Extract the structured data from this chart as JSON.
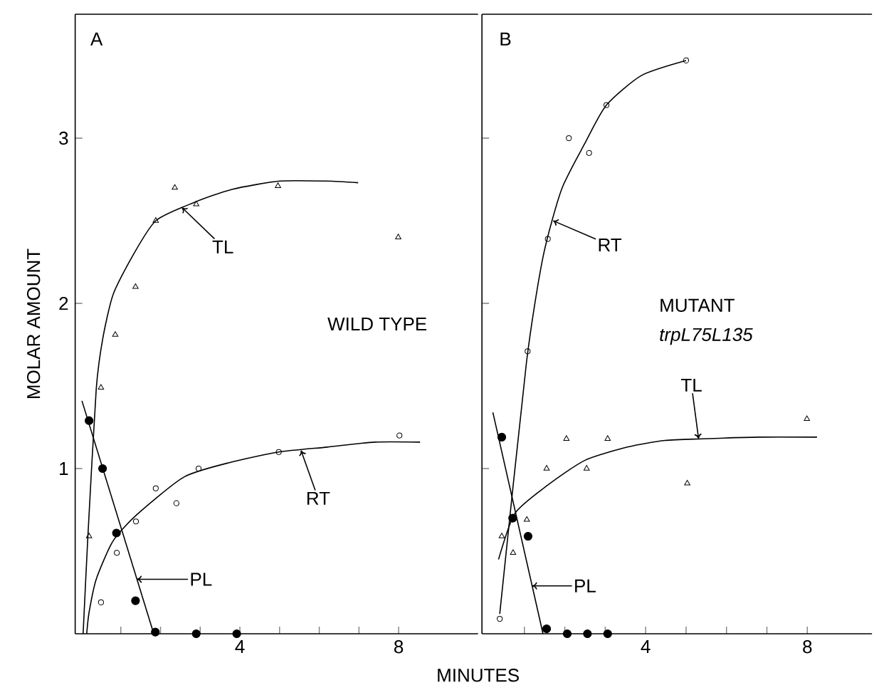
{
  "chart_data": [
    {
      "type": "scatter",
      "xlabel": "MINUTES",
      "ylabel": "MOLAR AMOUNT",
      "xlim": [
        -0.15,
        10
      ],
      "ylim": [
        0,
        3.75
      ],
      "xticks": [
        {
          "value": 1,
          "label": null
        },
        {
          "value": 2,
          "label": null
        },
        {
          "value": 3,
          "label": null
        },
        4,
        {
          "value": 5,
          "label": null
        },
        {
          "value": 6,
          "label": null
        },
        {
          "value": 7,
          "label": null
        },
        8
      ],
      "yticks": [
        1,
        2,
        3
      ],
      "series": [
        {
          "marker": "circle",
          "color": "#000000",
          "x": [
            0.2,
            0.54,
            0.89,
            1.37,
            1.87,
            2.9,
            3.92
          ],
          "values": [
            1.29,
            1.0,
            0.61,
            0.2,
            0.01,
            0,
            0
          ]
        },
        {
          "type": "line",
          "marker": "none",
          "color": "#000000",
          "x": [
            0.02,
            1.83
          ],
          "values": [
            1.41,
            0
          ]
        },
        {
          "marker": "triangle_open",
          "color": "#000000",
          "x": [
            0.2,
            0.5,
            0.86,
            1.37,
            1.88,
            2.36,
            2.9,
            4.96,
            7.99
          ],
          "values": [
            0.59,
            1.49,
            1.81,
            2.1,
            2.5,
            2.7,
            2.6,
            2.71,
            2.4
          ]
        },
        {
          "type": "line",
          "marker": "none",
          "color": "#000000",
          "x": [
            0.05,
            0.17,
            0.38,
            0.54,
            0.8,
            1.28,
            1.88,
            2.84,
            3.8,
            5.0,
            6.2,
            6.98
          ],
          "values": [
            0,
            0.59,
            1.48,
            1.78,
            2.05,
            2.28,
            2.5,
            2.61,
            2.69,
            2.74,
            2.74,
            2.73
          ]
        },
        {
          "marker": "circle_open",
          "color": "#000000",
          "x": [
            0.5,
            0.9,
            1.38,
            1.88,
            2.4,
            2.96,
            4.98,
            8.02
          ],
          "values": [
            0.19,
            0.49,
            0.68,
            0.88,
            0.79,
            1.0,
            1.1,
            1.2
          ]
        },
        {
          "type": "line",
          "marker": "none",
          "color": "#000000",
          "x": [
            0.14,
            0.2,
            0.38,
            0.8,
            1.4,
            2.6,
            3.8,
            4.98,
            6.2,
            7.4,
            8.54
          ],
          "values": [
            0,
            0.13,
            0.33,
            0.56,
            0.72,
            0.95,
            1.04,
            1.1,
            1.13,
            1.16,
            1.16
          ]
        }
      ],
      "annotations": [
        "A",
        {
          "text": "TL",
          "x": 2.54,
          "y": 2.58
        },
        {
          "text": "RT",
          "x": 5.54,
          "y": 1.11
        },
        {
          "text": "PL",
          "x": 1.4,
          "y": 0.33
        },
        "WILD TYPE"
      ]
    },
    {
      "type": "scatter",
      "tick_labels": "x",
      "xlim": [
        -0.05,
        9.6
      ],
      "ylim": [
        0,
        3.75
      ],
      "xticks": [
        {
          "value": 1,
          "label": null
        },
        {
          "value": 2,
          "label": null
        },
        {
          "value": 3,
          "label": null
        },
        4,
        {
          "value": 5,
          "label": null
        },
        {
          "value": 6,
          "label": null
        },
        {
          "value": 7,
          "label": null
        },
        8
      ],
      "yticks": [
        1,
        2,
        3
      ],
      "series": [
        {
          "marker": "circle",
          "color": "#000000",
          "x": [
            0.44,
            0.71,
            1.09,
            1.55,
            2.06,
            2.56,
            3.06
          ],
          "values": [
            1.19,
            0.7,
            0.59,
            0.03,
            0,
            0,
            0
          ]
        },
        {
          "type": "line",
          "marker": "none",
          "color": "#000000",
          "x": [
            0.22,
            1.46
          ],
          "values": [
            1.34,
            0.0
          ]
        },
        {
          "marker": "circle_open",
          "color": "#000000",
          "x": [
            0.39,
            1.08,
            1.58,
            2.1,
            2.6,
            3.03,
            5.0
          ],
          "values": [
            0.09,
            1.71,
            2.39,
            3.0,
            2.91,
            3.2,
            3.47
          ]
        },
        {
          "type": "line",
          "marker": "none",
          "color": "#000000",
          "x": [
            0.39,
            1.05,
            1.46,
            1.92,
            2.5,
            3.03,
            3.9,
            5.0
          ],
          "values": [
            0.12,
            1.64,
            2.28,
            2.69,
            2.97,
            3.2,
            3.38,
            3.47
          ]
        },
        {
          "marker": "triangle_open",
          "color": "#000000",
          "x": [
            0.44,
            0.72,
            1.06,
            1.55,
            2.04,
            2.54,
            3.06,
            5.03,
            7.99
          ],
          "values": [
            0.59,
            0.49,
            0.69,
            1.0,
            1.18,
            1.0,
            1.18,
            0.91,
            1.3
          ]
        },
        {
          "type": "line",
          "marker": "none",
          "color": "#000000",
          "x": [
            0.36,
            0.77,
            1.58,
            2.5,
            3.55,
            4.48,
            5.4,
            6.8,
            8.24
          ],
          "values": [
            0.45,
            0.73,
            0.9,
            1.05,
            1.13,
            1.17,
            1.18,
            1.19,
            1.19
          ]
        }
      ],
      "annotations": [
        "B",
        {
          "text": "RT",
          "x": 1.71,
          "y": 2.5
        },
        {
          "text": "TL",
          "x": 5.31,
          "y": 1.18
        },
        {
          "text": "PL",
          "x": 1.19,
          "y": 0.29
        },
        "MUTANT",
        "*trpL75L135*"
      ]
    }
  ]
}
